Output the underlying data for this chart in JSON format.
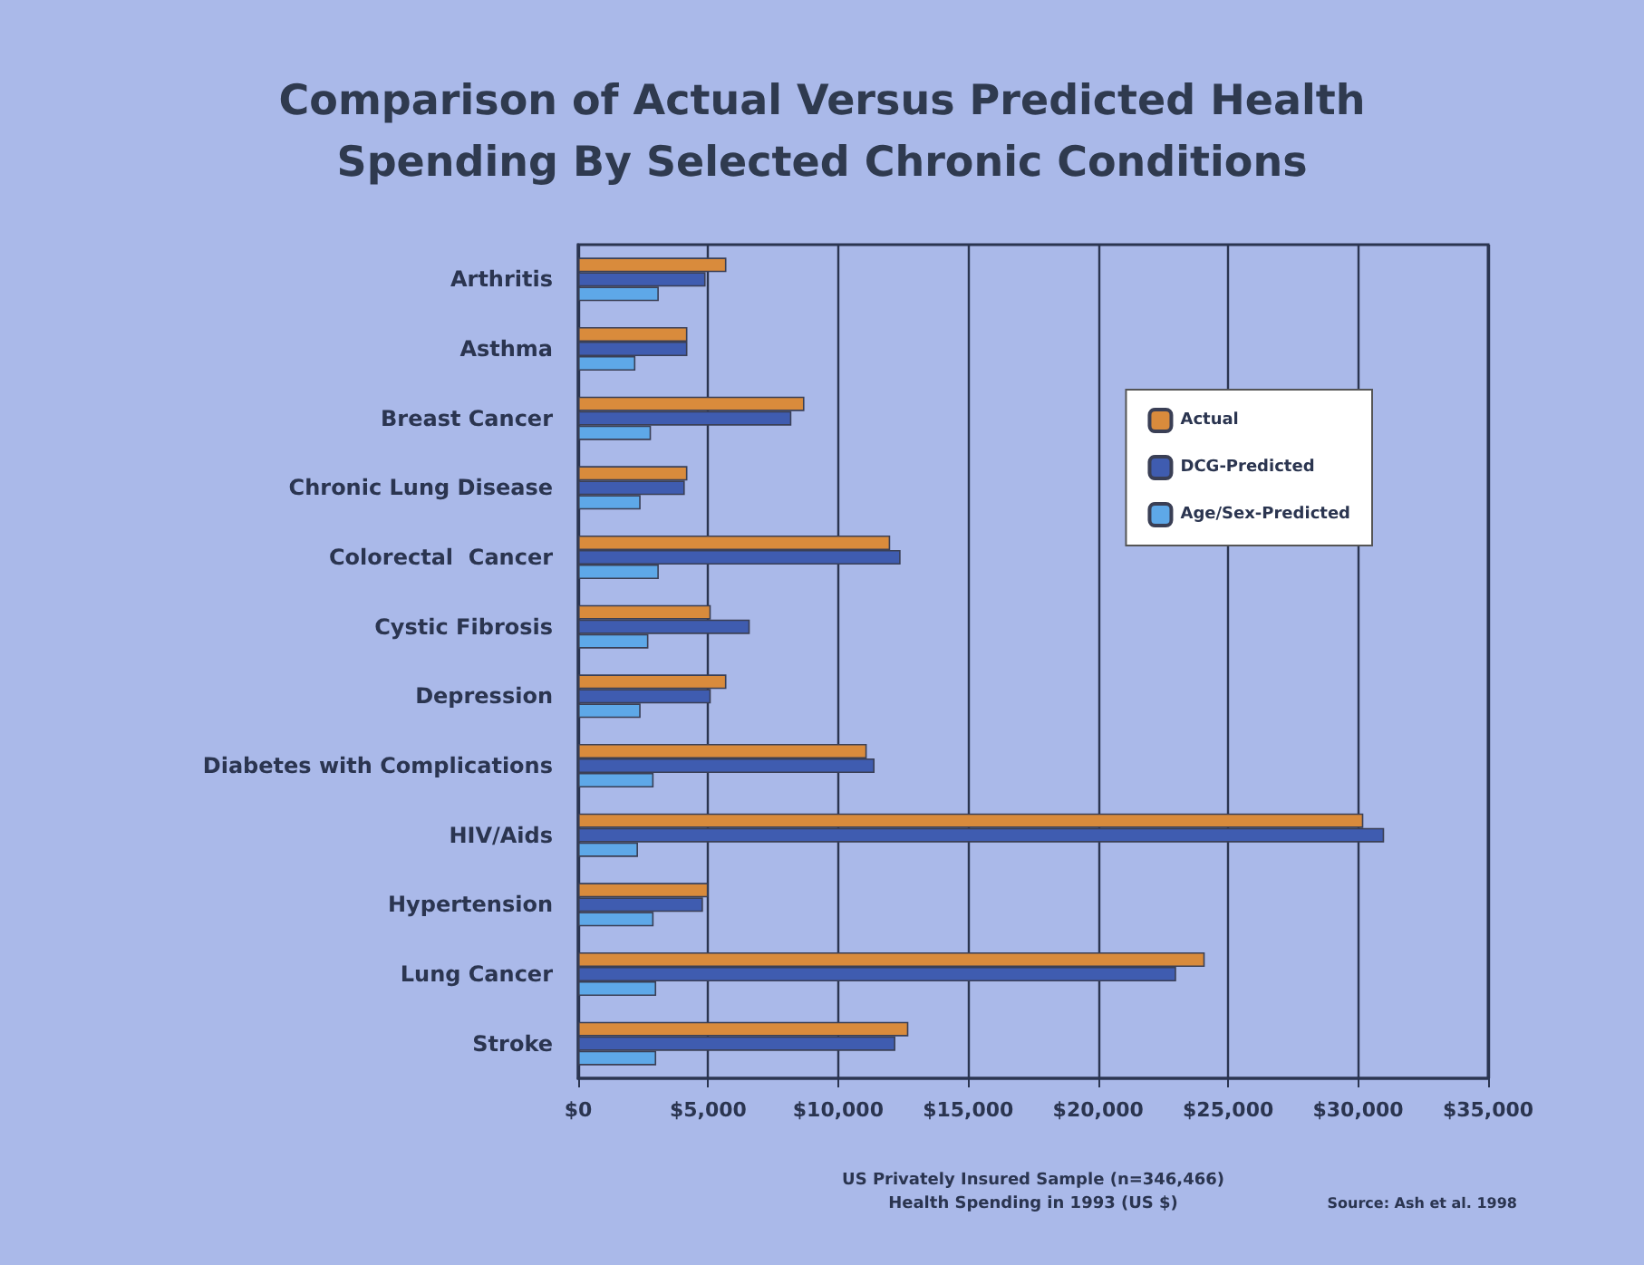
{
  "chart_data": {
    "type": "bar",
    "orientation": "horizontal",
    "title": "Comparison of Actual Versus Predicted Health\nSpending By Selected Chronic Conditions",
    "xlabel": "US Privately Insured Sample (n=346,466)\nHealth Spending in 1993 (US $)",
    "annotations": [
      "Source: Ash et al. 1998"
    ],
    "categories": [
      "Arthritis",
      "Asthma",
      "Breast Cancer",
      "Chronic Lung Disease",
      "Colorectal  Cancer",
      "Cystic Fibrosis",
      "Depression",
      "Diabetes with Complications",
      "HIV/Aids",
      "Hypertension",
      "Lung Cancer",
      "Stroke"
    ],
    "series": [
      {
        "name": "Actual",
        "color": "#d98b3c",
        "values": [
          5700,
          4200,
          8700,
          4200,
          12000,
          5100,
          5700,
          11100,
          30200,
          5000,
          24100,
          12700
        ]
      },
      {
        "name": "DCG-Predicted",
        "color": "#3f5cb0",
        "values": [
          4900,
          4200,
          8200,
          4100,
          12400,
          6600,
          5100,
          11400,
          31000,
          4800,
          23000,
          12200
        ]
      },
      {
        "name": "Age/Sex-Predicted",
        "color": "#5ea8e8",
        "values": [
          3100,
          2200,
          2800,
          2400,
          3100,
          2700,
          2400,
          2900,
          2300,
          2900,
          3000,
          3000
        ]
      }
    ],
    "xlim": [
      0,
      35000
    ],
    "xticks": [
      {
        "value": 0,
        "label": "$0"
      },
      {
        "value": 5000,
        "label": "$5,000"
      },
      {
        "value": 10000,
        "label": "$10,000"
      },
      {
        "value": 15000,
        "label": "$15,000"
      },
      {
        "value": 20000,
        "label": "$20,000"
      },
      {
        "value": 25000,
        "label": "$25,000"
      },
      {
        "value": 30000,
        "label": "$30,000"
      },
      {
        "value": 35000,
        "label": "$35,000"
      }
    ],
    "grid": "x",
    "legend": "right"
  }
}
